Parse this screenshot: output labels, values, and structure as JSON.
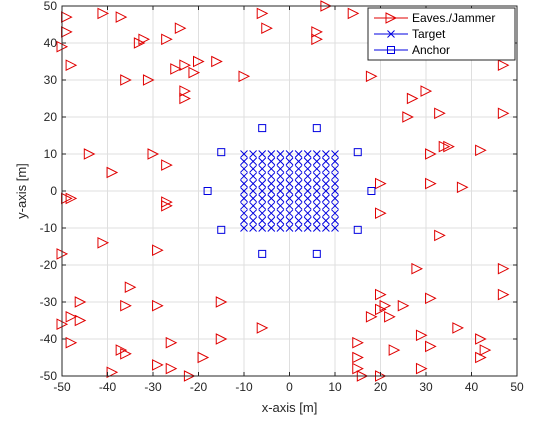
{
  "chart_data": {
    "type": "scatter",
    "xlabel": "x-axis [m]",
    "ylabel": "y-axis [m]",
    "xlim": [
      -50,
      50
    ],
    "ylim": [
      -50,
      50
    ],
    "xticks": [
      -50,
      -40,
      -30,
      -20,
      -10,
      0,
      10,
      20,
      30,
      40,
      50
    ],
    "yticks": [
      -50,
      -40,
      -30,
      -20,
      -10,
      0,
      10,
      20,
      30,
      40,
      50
    ],
    "grid": true,
    "legend_position": "top-right",
    "series": [
      {
        "name": "Eaves./Jammer",
        "marker": "triangle-right",
        "color": "#e00000",
        "points": [
          [
            -49,
            47
          ],
          [
            -49,
            43
          ],
          [
            -50,
            39
          ],
          [
            -41,
            48
          ],
          [
            -37,
            47
          ],
          [
            -48,
            34
          ],
          [
            -33,
            40
          ],
          [
            -32,
            41
          ],
          [
            -27,
            41
          ],
          [
            -24,
            44
          ],
          [
            -25,
            33
          ],
          [
            -23,
            34
          ],
          [
            -20,
            35
          ],
          [
            -21,
            32
          ],
          [
            -16,
            35
          ],
          [
            -23,
            27
          ],
          [
            -23,
            25
          ],
          [
            -36,
            30
          ],
          [
            -31,
            30
          ],
          [
            -10,
            31
          ],
          [
            -6,
            48
          ],
          [
            -5,
            44
          ],
          [
            6,
            43
          ],
          [
            6,
            41
          ],
          [
            8,
            50
          ],
          [
            14,
            48
          ],
          [
            21,
            48
          ],
          [
            24,
            46
          ],
          [
            48,
            46
          ],
          [
            47,
            34
          ],
          [
            18,
            31
          ],
          [
            27,
            25
          ],
          [
            30,
            27
          ],
          [
            26,
            20
          ],
          [
            33,
            21
          ],
          [
            47,
            21
          ],
          [
            -44,
            10
          ],
          [
            -39,
            5
          ],
          [
            -30,
            10
          ],
          [
            -27,
            7
          ],
          [
            -27,
            -3
          ],
          [
            -27,
            -4
          ],
          [
            -49,
            -2
          ],
          [
            -48,
            -2
          ],
          [
            -41,
            -14
          ],
          [
            -50,
            -17
          ],
          [
            -29,
            -16
          ],
          [
            20,
            2
          ],
          [
            20,
            -6
          ],
          [
            31,
            10
          ],
          [
            34,
            12
          ],
          [
            35,
            12
          ],
          [
            42,
            11
          ],
          [
            31,
            2
          ],
          [
            38,
            1
          ],
          [
            33,
            -12
          ],
          [
            -46,
            -30
          ],
          [
            -48,
            -34
          ],
          [
            -46,
            -35
          ],
          [
            -50,
            -36
          ],
          [
            -35,
            -26
          ],
          [
            -36,
            -31
          ],
          [
            -29,
            -31
          ],
          [
            -15,
            -30
          ],
          [
            -26,
            -41
          ],
          [
            -15,
            -40
          ],
          [
            -48,
            -41
          ],
          [
            -37,
            -43
          ],
          [
            -36,
            -44
          ],
          [
            -29,
            -47
          ],
          [
            -26,
            -48
          ],
          [
            -19,
            -45
          ],
          [
            -22,
            -50
          ],
          [
            -39,
            -49
          ],
          [
            -6,
            -37
          ],
          [
            15,
            -41
          ],
          [
            15,
            -45
          ],
          [
            15,
            -48
          ],
          [
            16,
            -50
          ],
          [
            20,
            -50
          ],
          [
            20,
            -28
          ],
          [
            21,
            -31
          ],
          [
            20,
            -32
          ],
          [
            18,
            -34
          ],
          [
            22,
            -34
          ],
          [
            25,
            -31
          ],
          [
            23,
            -43
          ],
          [
            28,
            -21
          ],
          [
            29,
            -39
          ],
          [
            31,
            -29
          ],
          [
            31,
            -42
          ],
          [
            37,
            -37
          ],
          [
            29,
            -48
          ],
          [
            42,
            -40
          ],
          [
            42,
            -45
          ],
          [
            43,
            -43
          ],
          [
            47,
            -21
          ],
          [
            47,
            -28
          ]
        ]
      },
      {
        "name": "Target",
        "marker": "x",
        "color": "#0000e0",
        "grid_x": [
          -10,
          -8,
          -6,
          -4,
          -2,
          0,
          2,
          4,
          6,
          8,
          10
        ],
        "grid_y": [
          -10,
          -8,
          -6,
          -4,
          -2,
          0,
          2,
          4,
          6,
          8,
          10
        ]
      },
      {
        "name": "Anchor",
        "marker": "square",
        "color": "#0000e0",
        "points": [
          [
            -6,
            17
          ],
          [
            6,
            17
          ],
          [
            -15,
            10.5
          ],
          [
            15,
            10.5
          ],
          [
            -18,
            0
          ],
          [
            18,
            0
          ],
          [
            -15,
            -10.5
          ],
          [
            15,
            -10.5
          ],
          [
            -6,
            -17
          ],
          [
            6,
            -17
          ]
        ]
      }
    ]
  }
}
